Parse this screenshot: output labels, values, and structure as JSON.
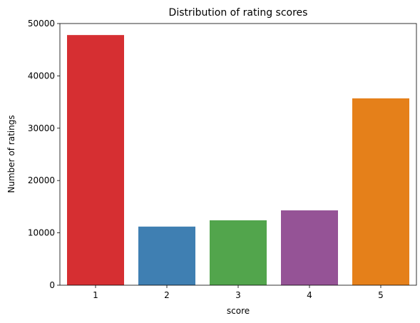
{
  "chart_data": {
    "type": "bar",
    "title": "Distribution of rating scores",
    "xlabel": "score",
    "ylabel": "Number of ratings",
    "categories": [
      "1",
      "2",
      "3",
      "4",
      "5"
    ],
    "values": [
      47800,
      11200,
      12400,
      14300,
      35700
    ],
    "colors": [
      "#d62f32",
      "#3f7fb2",
      "#52a54c",
      "#955396",
      "#e5801a"
    ],
    "ylim": [
      0,
      50000
    ],
    "yticks": [
      0,
      10000,
      20000,
      30000,
      40000,
      50000
    ],
    "ytick_labels": [
      "0",
      "10000",
      "20000",
      "30000",
      "40000",
      "50000"
    ],
    "grid": false,
    "legend": "none"
  }
}
